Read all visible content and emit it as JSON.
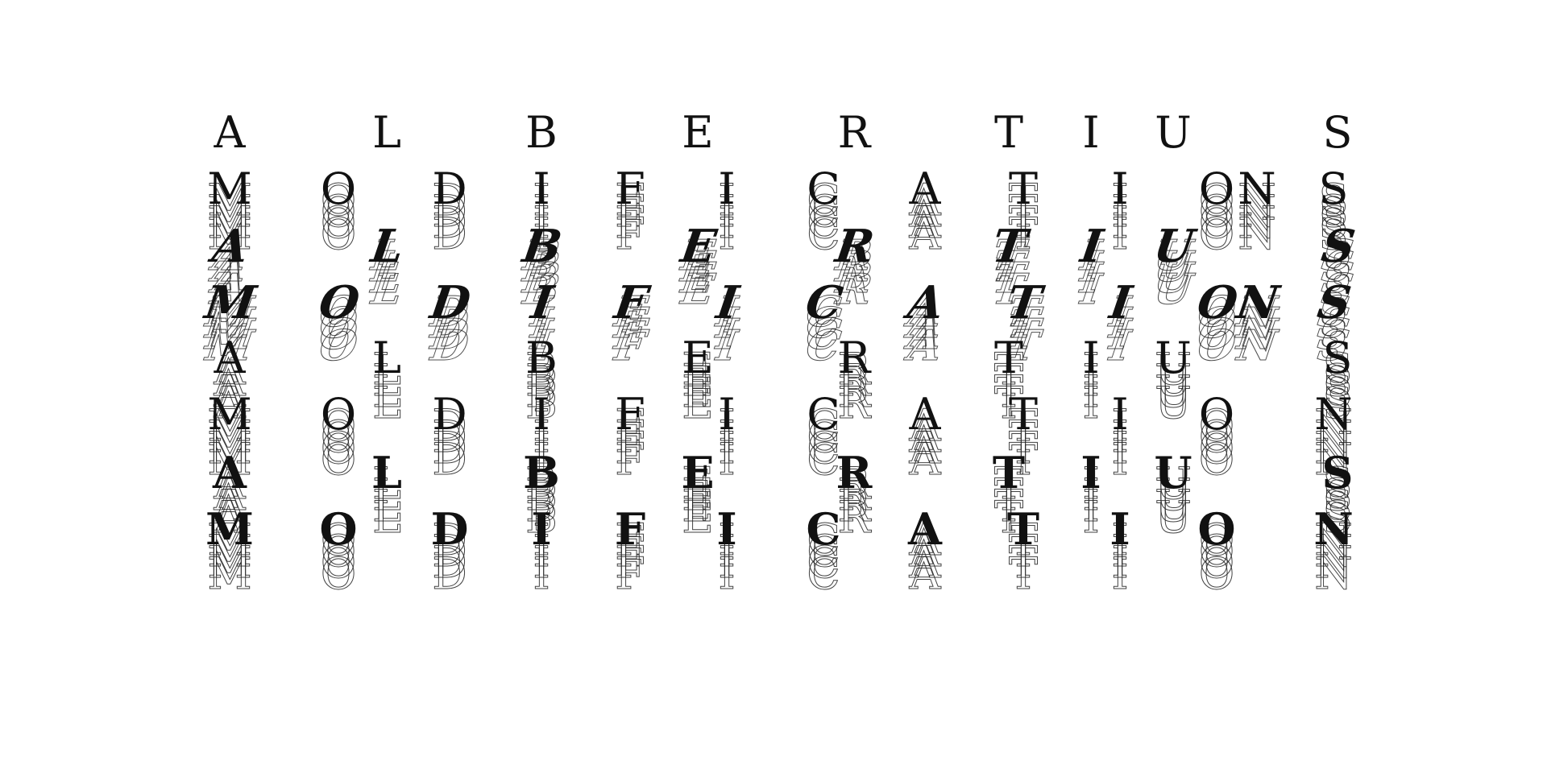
{
  "colors": {
    "background": "#ffffff",
    "ink": "#111111",
    "outline": "#222222"
  },
  "rows": [
    {
      "text": "ALBERTIUS",
      "style": "solid",
      "y": 0
    },
    {
      "text": "MODIFICATIONS",
      "style": "solid",
      "y": 1
    },
    {
      "text": "ALBERTIUS",
      "style": "blackletter",
      "y": 2
    },
    {
      "text": "MODIFICATIONS",
      "style": "blackletter",
      "y": 3
    },
    {
      "text": "ALBERTIUS",
      "style": "solid",
      "y": 4
    },
    {
      "text": "MODIFICATION",
      "style": "solid",
      "y": 5
    },
    {
      "text": "ALBERTIUS",
      "style": "bold",
      "y": 6
    },
    {
      "text": "MODIFICATION",
      "style": "bold",
      "y": 7
    }
  ]
}
